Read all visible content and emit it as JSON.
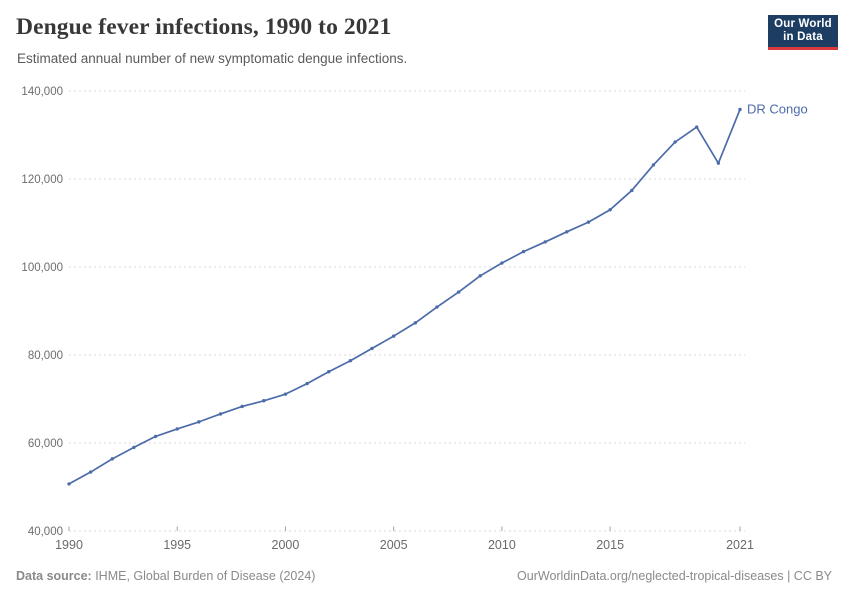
{
  "header": {
    "title": "Dengue fever infections, 1990 to 2021",
    "subtitle": "Estimated annual number of new symptomatic dengue infections."
  },
  "logo": {
    "line1": "Our World",
    "line2": "in Data",
    "bg_color": "#1d3d63",
    "accent_color": "#d93b3d"
  },
  "footer": {
    "datasource_label": "Data source:",
    "datasource_value": " IHME, Global Burden of Disease (2024)",
    "right_text": "OurWorldinData.org/neglected-tropical-diseases | CC BY"
  },
  "chart_data": {
    "type": "line",
    "title": "Dengue fever infections, 1990 to 2021",
    "subtitle": "Estimated annual number of new symptomatic dengue infections.",
    "x": [
      1990,
      1991,
      1992,
      1993,
      1994,
      1995,
      1996,
      1997,
      1998,
      1999,
      2000,
      2001,
      2002,
      2003,
      2004,
      2005,
      2006,
      2007,
      2008,
      2009,
      2010,
      2011,
      2012,
      2013,
      2014,
      2015,
      2016,
      2017,
      2018,
      2019,
      2020,
      2021
    ],
    "series": [
      {
        "name": "DR Congo",
        "color": "#4c6ba9",
        "values": [
          50700,
          53400,
          56400,
          59000,
          61500,
          63200,
          64800,
          66600,
          68300,
          69600,
          71100,
          73500,
          76200,
          78700,
          81500,
          84300,
          87300,
          90900,
          94300,
          98000,
          100900,
          103500,
          105700,
          108000,
          110200,
          113000,
          117400,
          123200,
          128400,
          131800,
          123600,
          135800
        ]
      }
    ],
    "xticks": [
      1990,
      1995,
      2000,
      2005,
      2010,
      2015,
      2021
    ],
    "yticks": [
      40000,
      60000,
      80000,
      100000,
      120000,
      140000
    ],
    "xlim": [
      1990,
      2021
    ],
    "ylim": [
      40000,
      140000
    ],
    "grid": "horizontal-dashed",
    "grid_color": "#dadada",
    "tick_label_color": "#6d6d6d",
    "legend_position": "end-of-line-label"
  }
}
